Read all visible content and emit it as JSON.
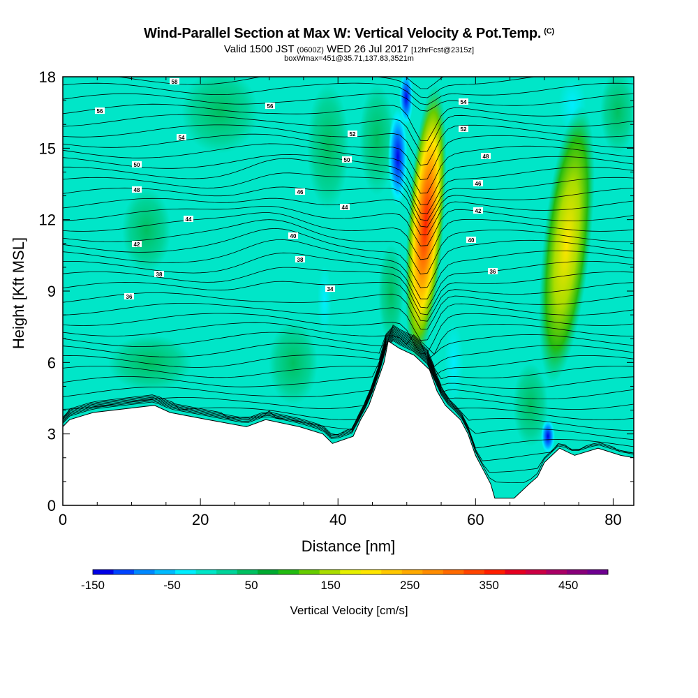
{
  "header": {
    "title": "Wind-Parallel Section at Max W: Vertical Velocity & Pot.Temp.",
    "copyright": "(C)",
    "valid": "Valid 1500 JST",
    "zulu": "(0600Z)",
    "date": "WED 26 Jul 2017",
    "forecast": "[12hrFcst@2315z]",
    "box": "boxWmax=451@35.71,137.83,3521m"
  },
  "chart_data": {
    "type": "heatmap",
    "title": "Wind-Parallel Section at Max W: Vertical Velocity & Pot.Temp.",
    "xlabel": "Distance [nm]",
    "ylabel": "Height [Kft MSL]",
    "xlim": [
      0,
      83
    ],
    "ylim": [
      0,
      18
    ],
    "x_ticks": [
      "0",
      "20",
      "40",
      "60",
      "80"
    ],
    "y_ticks": [
      "0",
      "3",
      "6",
      "9",
      "12",
      "15",
      "18"
    ],
    "grid": false,
    "colorbar": {
      "label": "Vertical Velocity [cm/s]",
      "tick_labels": [
        "-150",
        "-50",
        "50",
        "150",
        "250",
        "350",
        "450"
      ],
      "min": -150,
      "max": 500,
      "colors": [
        "#0000e6",
        "#0044ff",
        "#0088ff",
        "#00bbff",
        "#00eeff",
        "#00e6c8",
        "#00d49a",
        "#00c060",
        "#00aa30",
        "#22bb11",
        "#66cc00",
        "#aadd00",
        "#e6f000",
        "#ffe600",
        "#ffc800",
        "#ffaa00",
        "#ff8c00",
        "#ff6a00",
        "#ff4400",
        "#ff1e00",
        "#e60020",
        "#cc0044",
        "#aa0066",
        "#88007a",
        "#6e0090"
      ]
    },
    "contours": {
      "variable": "potential temperature",
      "labels": [
        "58",
        "56",
        "56",
        "54",
        "54",
        "52",
        "52",
        "50",
        "50",
        "48",
        "48",
        "46",
        "46",
        "44",
        "44",
        "42",
        "42",
        "40",
        "40",
        "38",
        "38",
        "36",
        "36",
        "34"
      ]
    },
    "terrain_kft": [
      [
        0,
        3.3
      ],
      [
        1,
        3.6
      ],
      [
        4.4,
        3.9
      ],
      [
        13.3,
        4.2
      ],
      [
        15.6,
        3.9
      ],
      [
        21.1,
        3.6
      ],
      [
        26.7,
        3.3
      ],
      [
        29.5,
        3.6
      ],
      [
        34.4,
        3.3
      ],
      [
        37.8,
        3.0
      ],
      [
        39.2,
        2.6
      ],
      [
        42.2,
        2.9
      ],
      [
        43.3,
        3.6
      ],
      [
        44.5,
        4.2
      ],
      [
        46.7,
        6.0
      ],
      [
        47.3,
        6.9
      ],
      [
        48.9,
        6.6
      ],
      [
        51.1,
        6.3
      ],
      [
        53.3,
        5.7
      ],
      [
        54.4,
        4.8
      ],
      [
        55.6,
        4.2
      ],
      [
        56.7,
        3.9
      ],
      [
        57.8,
        3.6
      ],
      [
        58.9,
        3.0
      ],
      [
        60.0,
        2.1
      ],
      [
        61.1,
        1.5
      ],
      [
        62.2,
        0.9
      ],
      [
        62.8,
        0.3
      ],
      [
        65.6,
        0.3
      ],
      [
        66.7,
        0.6
      ],
      [
        67.8,
        0.9
      ],
      [
        69.0,
        1.2
      ],
      [
        70.0,
        1.8
      ],
      [
        71.1,
        2.1
      ],
      [
        72.2,
        2.4
      ],
      [
        74.4,
        2.1
      ],
      [
        77.8,
        2.4
      ],
      [
        81.1,
        2.1
      ],
      [
        83,
        2.0
      ]
    ],
    "updraft_features": [
      {
        "x_nm": 52.5,
        "height_kft": 11,
        "w_cms": 451
      },
      {
        "x_nm": 73.5,
        "height_kft": 11,
        "w_cms": 200
      },
      {
        "x_nm": 48.5,
        "height_kft": 14,
        "w_cms": -120
      }
    ]
  }
}
